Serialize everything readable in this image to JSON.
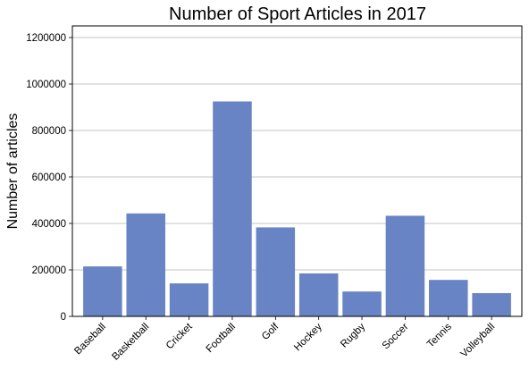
{
  "chart_data": {
    "type": "bar",
    "title": "Number of Sport Articles in 2017",
    "xlabel": "",
    "ylabel": "Number of articles",
    "categories": [
      "Baseball",
      "Basketball",
      "Cricket",
      "Football",
      "Golf",
      "Hockey",
      "Rugby",
      "Soccer",
      "Tennis",
      "Volleyball"
    ],
    "values": [
      215000,
      443000,
      142000,
      925000,
      383000,
      185000,
      107000,
      433000,
      157000,
      100000
    ],
    "ylim": [
      0,
      1250000
    ],
    "yticks": [
      0,
      200000,
      400000,
      600000,
      800000,
      1000000,
      1200000
    ],
    "grid": "horizontal",
    "bar_color": "#6884c4",
    "legend": "none"
  }
}
